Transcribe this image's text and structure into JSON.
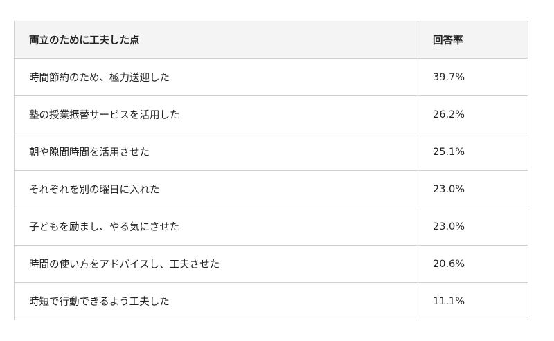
{
  "table": {
    "headers": [
      "両立のために工夫した点",
      "回答率"
    ],
    "rows": [
      [
        "時間節約のため、極力送迎した",
        "39.7%"
      ],
      [
        "塾の授業振替サービスを活用した",
        "26.2%"
      ],
      [
        "朝や隙間時間を活用させた",
        "25.1%"
      ],
      [
        "それぞれを別の曜日に入れた",
        "23.0%"
      ],
      [
        "子どもを励まし、やる気にさせた",
        "23.0%"
      ],
      [
        "時間の使い方をアドバイスし、工夫させた",
        "20.6%"
      ],
      [
        "時短で行動できるよう工夫した",
        "11.1%"
      ]
    ]
  }
}
